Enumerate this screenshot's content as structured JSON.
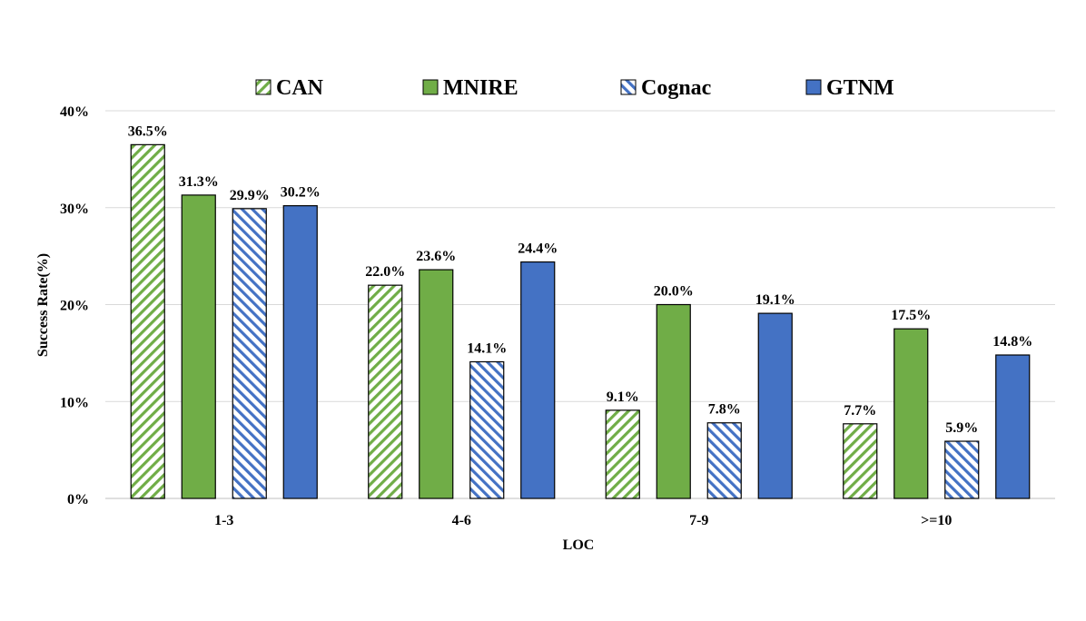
{
  "chart_data": {
    "type": "bar",
    "title": "",
    "xlabel": "LOC",
    "ylabel": "Success Rate(%)",
    "categories": [
      "1-3",
      "4-6",
      "7-9",
      ">=10"
    ],
    "ylim": [
      0,
      40
    ],
    "yticks": [
      "0%",
      "10%",
      "20%",
      "30%",
      "40%"
    ],
    "grid": true,
    "legend_position": "top",
    "series": [
      {
        "name": "CAN",
        "values": [
          36.5,
          22.0,
          9.1,
          7.7
        ],
        "labels": [
          "36.5%",
          "22.0%",
          "9.1%",
          "7.7%"
        ],
        "color": "#70ad47",
        "pattern": "hatch-green"
      },
      {
        "name": "MNIRE",
        "values": [
          31.3,
          23.6,
          20.0,
          17.5
        ],
        "labels": [
          "31.3%",
          "23.6%",
          "20.0%",
          "17.5%"
        ],
        "color": "#70ad47",
        "pattern": "solid"
      },
      {
        "name": "Cognac",
        "values": [
          29.9,
          14.1,
          7.8,
          5.9
        ],
        "labels": [
          "29.9%",
          "14.1%",
          "7.8%",
          "5.9%"
        ],
        "color": "#4472c4",
        "pattern": "hatch-blue"
      },
      {
        "name": "GTNM",
        "values": [
          30.2,
          24.4,
          19.1,
          14.8
        ],
        "labels": [
          "30.2%",
          "24.4%",
          "19.1%",
          "14.8%"
        ],
        "color": "#4472c4",
        "pattern": "solid"
      }
    ]
  }
}
